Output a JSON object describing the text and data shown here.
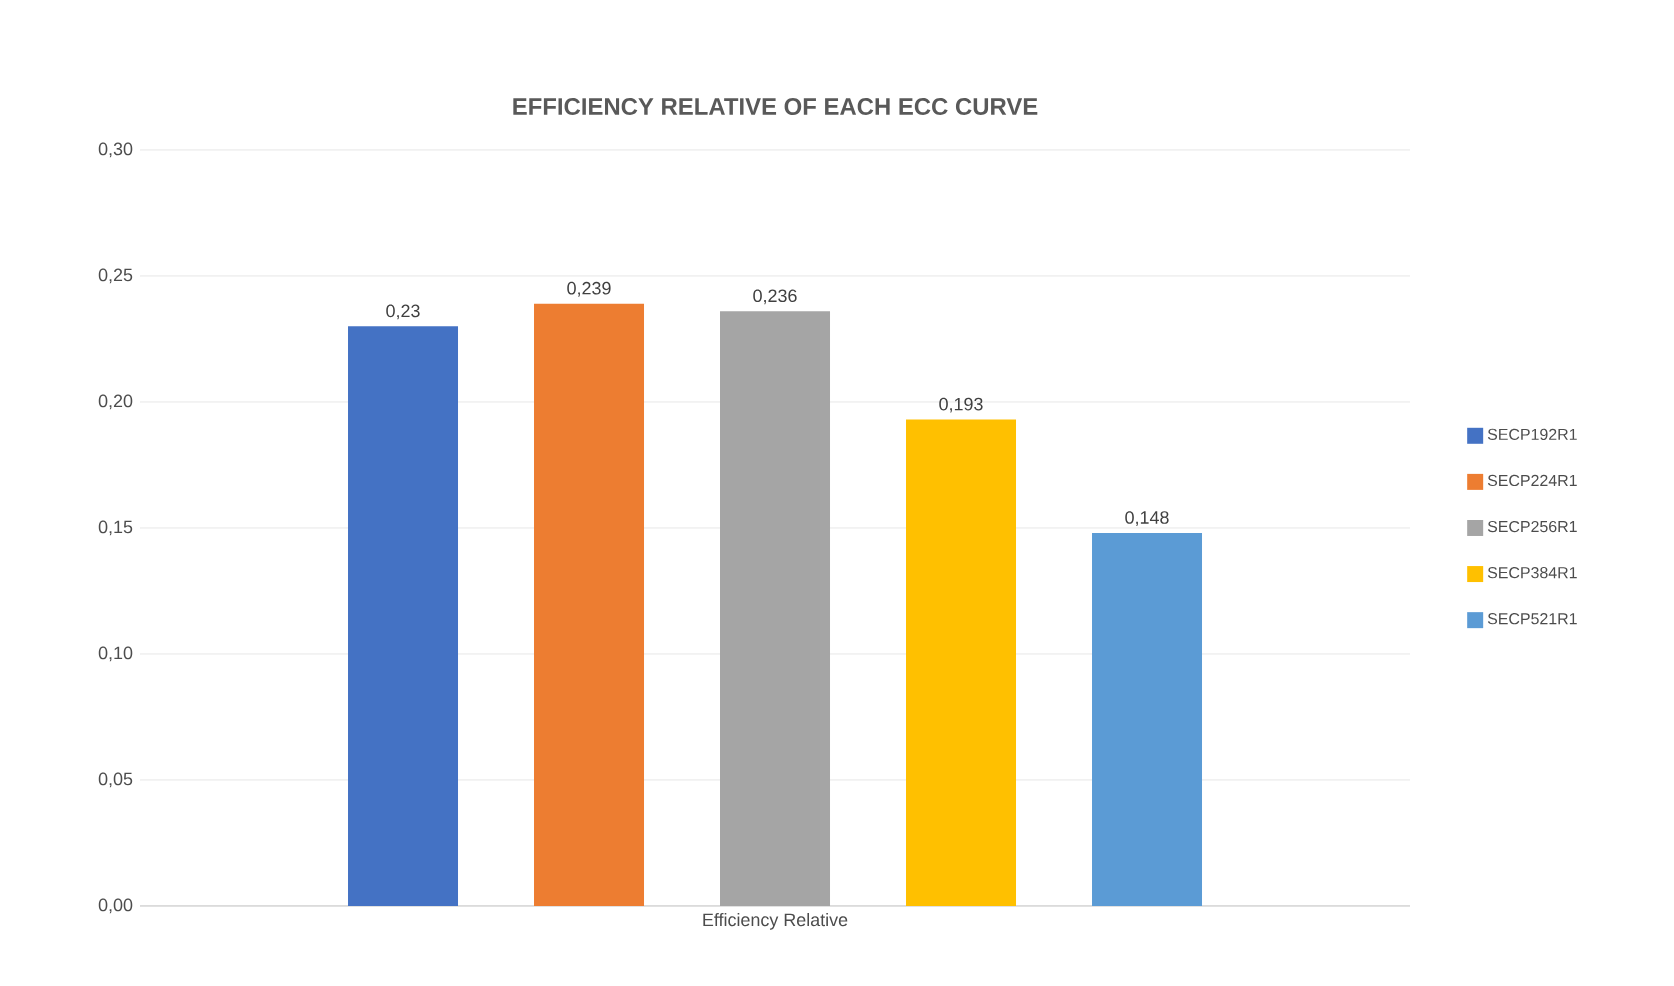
{
  "chart_data": {
    "type": "bar",
    "title": "EFFICIENCY RELATIVE OF EACH ECC CURVE",
    "categories": [
      "Efficiency Relative"
    ],
    "series": [
      {
        "name": "SECP192R1",
        "color": "#4472c4",
        "values": [
          0.23
        ],
        "value_labels": [
          "0,23"
        ]
      },
      {
        "name": "SECP224R1",
        "color": "#ed7d31",
        "values": [
          0.239
        ],
        "value_labels": [
          "0,239"
        ]
      },
      {
        "name": "SECP256R1",
        "color": "#a5a5a5",
        "values": [
          0.236
        ],
        "value_labels": [
          "0,236"
        ]
      },
      {
        "name": "SECP384R1",
        "color": "#ffc000",
        "values": [
          0.193
        ],
        "value_labels": [
          "0,193"
        ]
      },
      {
        "name": "SECP521R1",
        "color": "#5b9bd5",
        "values": [
          0.148
        ],
        "value_labels": [
          "0,148"
        ]
      }
    ],
    "ylim": [
      0,
      0.3
    ],
    "yticks": [
      {
        "value": 0,
        "label": "0,00"
      },
      {
        "value": 0.05,
        "label": "0,05"
      },
      {
        "value": 0.1,
        "label": "0,10"
      },
      {
        "value": 0.15,
        "label": "0,15"
      },
      {
        "value": 0.2,
        "label": "0,20"
      },
      {
        "value": 0.25,
        "label": "0,25"
      },
      {
        "value": 0.3,
        "label": "0,30"
      }
    ],
    "grid": "y",
    "legend": "right"
  }
}
